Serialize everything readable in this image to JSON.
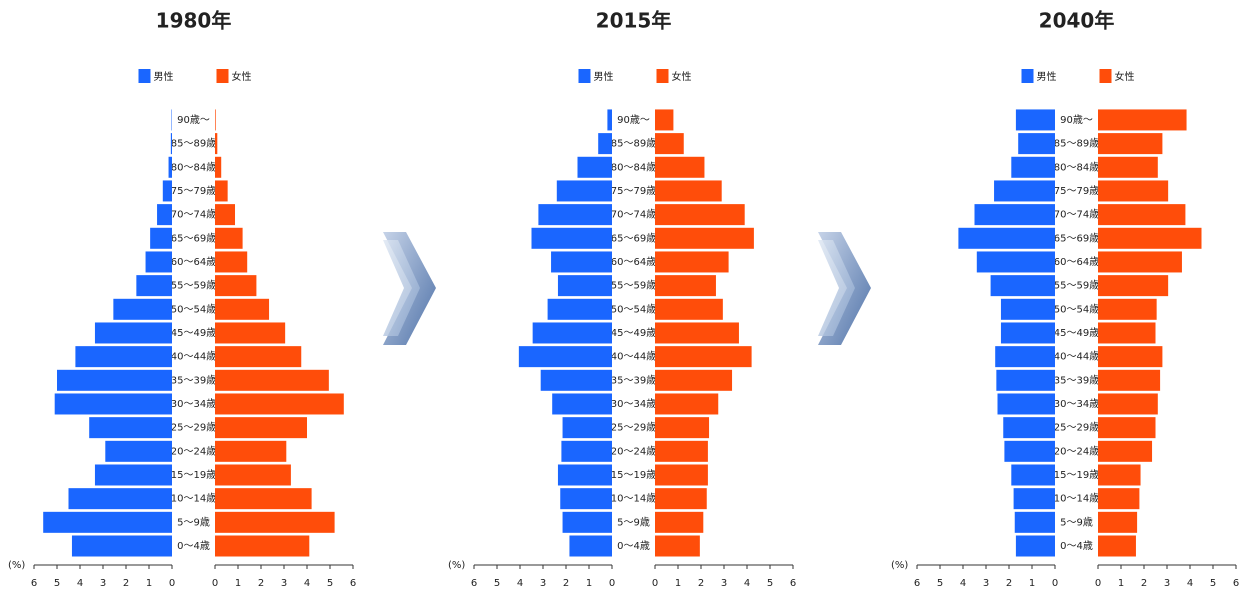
{
  "chart_data": [
    {
      "type": "pyramid",
      "title": "1980年",
      "legend": "top",
      "xlabel": "(%)",
      "categories": [
        "0〜4歳",
        "5〜9歳",
        "10〜14歳",
        "15〜19歳",
        "20〜24歳",
        "25〜29歳",
        "30〜34歳",
        "35〜39歳",
        "40〜44歳",
        "45〜49歳",
        "50〜54歳",
        "55〜59歳",
        "60〜64歳",
        "65〜69歳",
        "70〜74歳",
        "75〜79歳",
        "80〜84歳",
        "85〜89歳",
        "90歳〜"
      ],
      "series": [
        {
          "name": "男性",
          "color": "#1a66ff",
          "values": [
            4.35,
            5.6,
            4.5,
            3.35,
            2.9,
            3.6,
            5.1,
            5.0,
            4.2,
            3.35,
            2.55,
            1.55,
            1.15,
            0.95,
            0.65,
            0.4,
            0.15,
            0.05,
            0.02
          ]
        },
        {
          "name": "女性",
          "color": "#ff4d0a",
          "values": [
            4.1,
            5.2,
            4.2,
            3.3,
            3.1,
            4.0,
            5.6,
            4.95,
            3.75,
            3.05,
            2.35,
            1.8,
            1.4,
            1.2,
            0.87,
            0.55,
            0.27,
            0.1,
            0.03
          ]
        }
      ],
      "xlim": [
        0,
        6
      ],
      "xticks": [
        0,
        1,
        2,
        3,
        4,
        5,
        6
      ]
    },
    {
      "type": "pyramid",
      "title": "2015年",
      "legend": "top",
      "xlabel": "(%)",
      "categories": [
        "0〜4歳",
        "5〜9歳",
        "10〜14歳",
        "15〜19歳",
        "20〜24歳",
        "25〜29歳",
        "30〜34歳",
        "35〜39歳",
        "40〜44歳",
        "45〜49歳",
        "50〜54歳",
        "55〜59歳",
        "60〜64歳",
        "65〜69歳",
        "70〜74歳",
        "75〜79歳",
        "80〜84歳",
        "85〜89歳",
        "90歳〜"
      ],
      "series": [
        {
          "name": "男性",
          "color": "#1a66ff",
          "values": [
            1.85,
            2.15,
            2.25,
            2.35,
            2.2,
            2.15,
            2.6,
            3.1,
            4.05,
            3.45,
            2.8,
            2.35,
            2.65,
            3.5,
            3.2,
            2.4,
            1.5,
            0.6,
            0.2
          ]
        },
        {
          "name": "女性",
          "color": "#ff4d0a",
          "values": [
            1.95,
            2.1,
            2.25,
            2.3,
            2.3,
            2.35,
            2.75,
            3.35,
            4.2,
            3.65,
            2.95,
            2.65,
            3.2,
            4.3,
            3.9,
            2.9,
            2.15,
            1.25,
            0.8
          ]
        }
      ],
      "xlim": [
        0,
        6
      ],
      "xticks": [
        0,
        1,
        2,
        3,
        4,
        5,
        6
      ]
    },
    {
      "type": "pyramid",
      "title": "2040年",
      "legend": "top",
      "xlabel": "(%)",
      "categories": [
        "0〜4歳",
        "5〜9歳",
        "10〜14歳",
        "15〜19歳",
        "20〜24歳",
        "25〜29歳",
        "30〜34歳",
        "35〜39歳",
        "40〜44歳",
        "45〜49歳",
        "50〜54歳",
        "55〜59歳",
        "60〜64歳",
        "65〜69歳",
        "70〜74歳",
        "75〜79歳",
        "80〜84歳",
        "85〜89歳",
        "90歳〜"
      ],
      "series": [
        {
          "name": "男性",
          "color": "#1a66ff",
          "values": [
            1.7,
            1.75,
            1.8,
            1.9,
            2.2,
            2.25,
            2.5,
            2.55,
            2.6,
            2.35,
            2.35,
            2.8,
            3.4,
            4.2,
            3.5,
            2.65,
            1.9,
            1.6,
            1.7
          ]
        },
        {
          "name": "女性",
          "color": "#ff4d0a",
          "values": [
            1.65,
            1.7,
            1.8,
            1.85,
            2.35,
            2.5,
            2.6,
            2.7,
            2.8,
            2.5,
            2.55,
            3.05,
            3.65,
            4.5,
            3.8,
            3.05,
            2.6,
            2.8,
            3.85
          ]
        }
      ],
      "xlim": [
        0,
        6
      ],
      "xticks": [
        0,
        1,
        2,
        3,
        4,
        5,
        6
      ]
    }
  ]
}
